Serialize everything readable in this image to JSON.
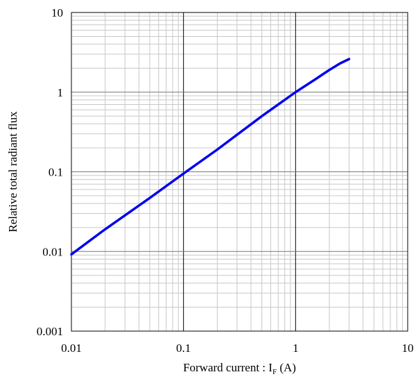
{
  "chart_data": {
    "type": "line",
    "title": "",
    "xlabel": "Forward current : I",
    "xlabel_subscript": "F",
    "xlabel_suffix": " (A)",
    "ylabel": "Relative total radiant flux",
    "x_scale": "log",
    "y_scale": "log",
    "xlim": [
      0.01,
      10
    ],
    "ylim": [
      0.001,
      10
    ],
    "x_ticks": [
      0.01,
      0.1,
      1,
      10
    ],
    "x_tick_labels": [
      "0.01",
      "0.1",
      "1",
      "10"
    ],
    "y_ticks": [
      0.001,
      0.01,
      0.1,
      1,
      10
    ],
    "y_tick_labels": [
      "0.001",
      "0.01",
      "0.1",
      "1",
      "10"
    ],
    "grid": true,
    "line_color": "#0000ee",
    "series": [
      {
        "x": [
          0.01,
          0.02,
          0.05,
          0.1,
          0.2,
          0.5,
          1,
          1.5,
          2,
          2.5,
          3
        ],
        "y": [
          0.0092,
          0.019,
          0.047,
          0.095,
          0.19,
          0.5,
          1.0,
          1.45,
          1.9,
          2.3,
          2.6
        ]
      }
    ]
  }
}
